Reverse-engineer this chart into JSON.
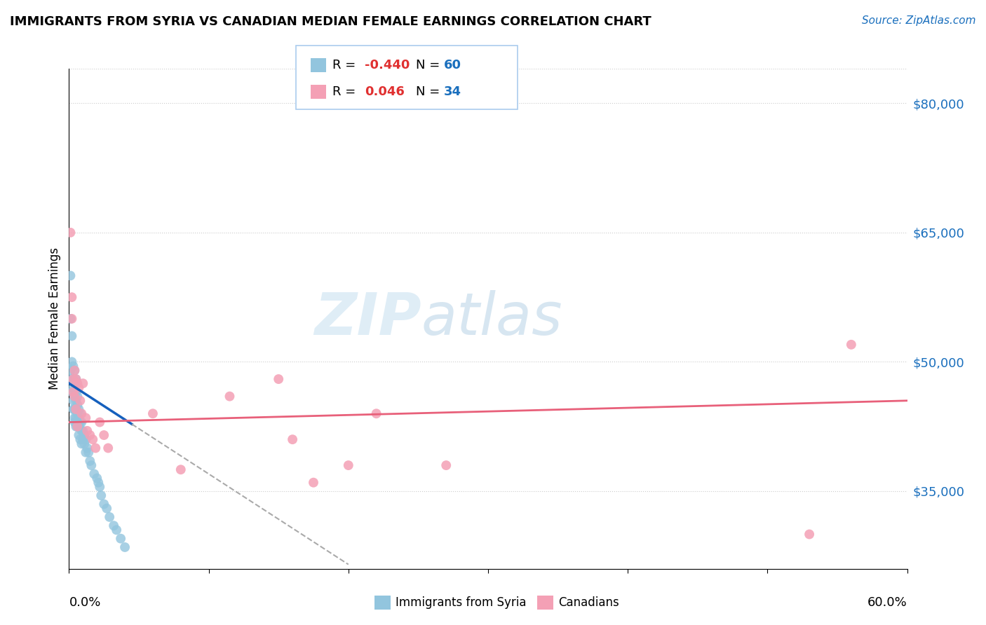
{
  "title": "IMMIGRANTS FROM SYRIA VS CANADIAN MEDIAN FEMALE EARNINGS CORRELATION CHART",
  "source": "Source: ZipAtlas.com",
  "ylabel": "Median Female Earnings",
  "xlim": [
    0.0,
    0.6
  ],
  "ylim": [
    26000,
    84000
  ],
  "ytick_positions": [
    35000,
    50000,
    65000,
    80000
  ],
  "ytick_labels": [
    "$35,000",
    "$50,000",
    "$65,000",
    "$80,000"
  ],
  "blue_color": "#92c5de",
  "pink_color": "#f4a0b5",
  "trend_blue": "#1560bd",
  "trend_pink": "#e8607a",
  "blue_dots_x": [
    0.001,
    0.001,
    0.001,
    0.002,
    0.002,
    0.002,
    0.002,
    0.003,
    0.003,
    0.003,
    0.003,
    0.003,
    0.004,
    0.004,
    0.004,
    0.004,
    0.004,
    0.004,
    0.005,
    0.005,
    0.005,
    0.005,
    0.005,
    0.005,
    0.006,
    0.006,
    0.006,
    0.006,
    0.007,
    0.007,
    0.007,
    0.007,
    0.008,
    0.008,
    0.008,
    0.009,
    0.009,
    0.009,
    0.01,
    0.01,
    0.011,
    0.011,
    0.012,
    0.012,
    0.013,
    0.014,
    0.015,
    0.016,
    0.018,
    0.02,
    0.021,
    0.022,
    0.023,
    0.025,
    0.027,
    0.029,
    0.032,
    0.034,
    0.037,
    0.04
  ],
  "blue_dots_y": [
    60000,
    55000,
    49000,
    53000,
    50000,
    48000,
    46500,
    49500,
    48000,
    47000,
    45500,
    44500,
    49000,
    47500,
    46000,
    44500,
    43500,
    43000,
    48000,
    46500,
    45500,
    44500,
    43500,
    42500,
    46000,
    45000,
    44000,
    42500,
    44500,
    43500,
    42500,
    41500,
    44000,
    43000,
    41000,
    43000,
    42000,
    40500,
    42000,
    41000,
    41500,
    40500,
    41000,
    39500,
    40000,
    39500,
    38500,
    38000,
    37000,
    36500,
    36000,
    35500,
    34500,
    33500,
    33000,
    32000,
    31000,
    30500,
    29500,
    28500
  ],
  "pink_dots_x": [
    0.001,
    0.002,
    0.002,
    0.003,
    0.003,
    0.004,
    0.004,
    0.005,
    0.005,
    0.006,
    0.006,
    0.007,
    0.008,
    0.009,
    0.01,
    0.012,
    0.013,
    0.015,
    0.017,
    0.019,
    0.022,
    0.025,
    0.028,
    0.06,
    0.08,
    0.115,
    0.15,
    0.16,
    0.175,
    0.2,
    0.22,
    0.27,
    0.53,
    0.56
  ],
  "pink_dots_y": [
    65000,
    57500,
    55000,
    48000,
    46500,
    49000,
    46000,
    48000,
    44500,
    47500,
    42500,
    47000,
    45500,
    44000,
    47500,
    43500,
    42000,
    41500,
    41000,
    40000,
    43000,
    41500,
    40000,
    44000,
    37500,
    46000,
    48000,
    41000,
    36000,
    38000,
    44000,
    38000,
    30000,
    52000
  ],
  "blue_trend_x0": 0.0,
  "blue_trend_y0": 47500,
  "blue_trend_x1": 0.2,
  "blue_trend_y1": 26500,
  "blue_solid_xend": 0.045,
  "blue_dash_xend": 0.2,
  "pink_trend_x0": 0.0,
  "pink_trend_y0": 43000,
  "pink_trend_x1": 0.6,
  "pink_trend_y1": 45500
}
